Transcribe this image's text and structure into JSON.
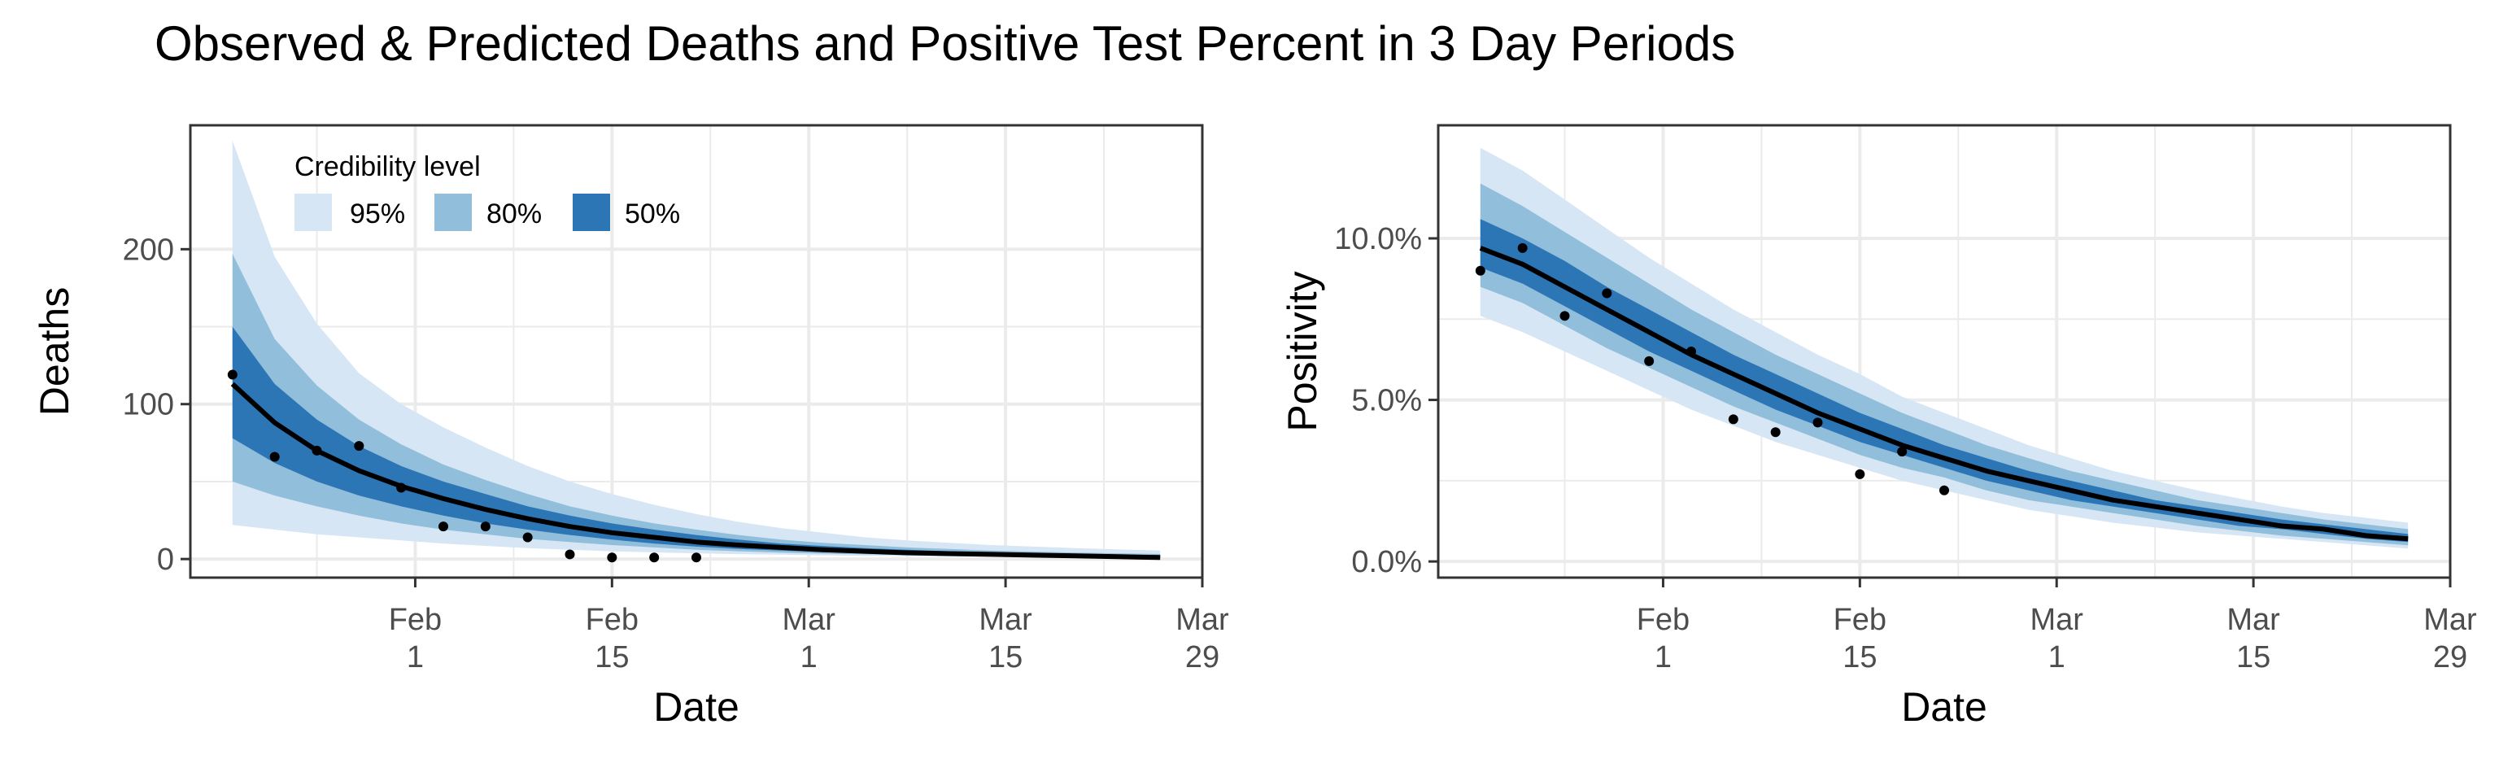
{
  "figure": {
    "title": "Observed & Predicted Deaths and Positive Test Percent in 3 Day Periods"
  },
  "legend": {
    "title": "Credibility level",
    "items": [
      {
        "label": "95%",
        "color": "#d6e6f4"
      },
      {
        "label": "80%",
        "color": "#91bedb"
      },
      {
        "label": "50%",
        "color": "#2d76b6"
      }
    ]
  },
  "colors": {
    "median_line": "#000000",
    "points": "#000000",
    "grid": "#ebebeb",
    "panel_border": "#333333"
  },
  "chart_data": [
    {
      "type": "area",
      "title": "",
      "xlabel": "Date",
      "ylabel": "Deaths",
      "x_tick_labels": [
        [
          "Feb",
          "1"
        ],
        [
          "Feb",
          "15"
        ],
        [
          "Mar",
          "1"
        ],
        [
          "Mar",
          "15"
        ],
        [
          "Mar",
          "29"
        ]
      ],
      "x_ticks": [
        "2021-02-01",
        "2021-02-15",
        "2021-03-01",
        "2021-03-15",
        "2021-03-29"
      ],
      "y_tick_labels": [
        "0",
        "100",
        "200"
      ],
      "y_ticks": [
        0,
        100,
        200
      ],
      "xlim": [
        "2021-01-16",
        "2021-03-29"
      ],
      "ylim": [
        -12,
        280
      ],
      "grid": true,
      "legend_position": "top-left",
      "x": [
        "2021-01-19",
        "2021-01-22",
        "2021-01-25",
        "2021-01-28",
        "2021-01-31",
        "2021-02-03",
        "2021-02-06",
        "2021-02-09",
        "2021-02-12",
        "2021-02-15",
        "2021-02-18",
        "2021-02-21",
        "2021-02-24",
        "2021-02-27",
        "2021-03-02",
        "2021-03-05",
        "2021-03-08",
        "2021-03-11",
        "2021-03-14",
        "2021-03-17",
        "2021-03-20",
        "2021-03-23",
        "2021-03-26"
      ],
      "median": [
        113,
        88,
        70,
        57,
        47,
        39,
        32,
        26,
        21,
        17,
        14,
        11,
        9,
        7.5,
        6,
        5,
        4,
        3.5,
        3,
        2.5,
        2,
        1.5,
        1
      ],
      "ci50": {
        "lower": [
          78,
          62,
          50,
          41,
          34,
          28,
          23,
          19,
          15.5,
          12.5,
          10,
          8,
          6.5,
          5.5,
          4.5,
          3.8,
          3,
          2.6,
          2.2,
          1.9,
          1.6,
          1.3,
          1
        ],
        "upper": [
          150,
          113,
          90,
          73,
          60,
          50,
          42,
          34,
          28,
          23,
          19,
          15.5,
          12.5,
          10,
          8.5,
          7,
          6,
          5,
          4.3,
          3.7,
          3.2,
          2.8,
          2.5
        ]
      },
      "ci80": {
        "lower": [
          50,
          41,
          34,
          28,
          23,
          19,
          16,
          13,
          11,
          9,
          7.5,
          6,
          5,
          4.2,
          3.5,
          3,
          2.5,
          2.1,
          1.8,
          1.6,
          1.4,
          1.2,
          1
        ]
      },
      "ci80_upper": [
        197,
        142,
        112,
        90,
        74,
        61,
        51,
        42,
        34,
        28,
        23,
        19,
        15.5,
        12.5,
        10.5,
        9,
        7.5,
        6.5,
        5.5,
        4.8,
        4.2,
        3.7,
        3.3
      ],
      "ci95": {
        "lower": [
          22,
          19,
          16,
          14,
          12,
          10,
          8.5,
          7,
          6,
          5,
          4.3,
          3.7,
          3.2,
          2.8,
          2.4,
          2.1,
          1.9,
          1.7,
          1.5,
          1.3,
          1.2,
          1.1,
          1
        ],
        "upper": [
          270,
          195,
          152,
          120,
          100,
          85,
          72,
          60,
          50,
          42,
          35,
          29,
          24,
          20,
          17,
          14,
          12,
          10.5,
          9,
          8,
          7,
          6.2,
          5.5
        ]
      },
      "observed": {
        "x": [
          "2021-01-19",
          "2021-01-22",
          "2021-01-25",
          "2021-01-28",
          "2021-01-31",
          "2021-02-03",
          "2021-02-06",
          "2021-02-09",
          "2021-02-12",
          "2021-02-15",
          "2021-02-18",
          "2021-02-21"
        ],
        "y": [
          119,
          66,
          70,
          73,
          46,
          21,
          21,
          14,
          3,
          1,
          1,
          1
        ]
      }
    },
    {
      "type": "area",
      "title": "",
      "xlabel": "Date",
      "ylabel": "Positivity",
      "x_tick_labels": [
        [
          "Feb",
          "1"
        ],
        [
          "Feb",
          "15"
        ],
        [
          "Mar",
          "1"
        ],
        [
          "Mar",
          "15"
        ],
        [
          "Mar",
          "29"
        ]
      ],
      "x_ticks": [
        "2021-02-01",
        "2021-02-15",
        "2021-03-01",
        "2021-03-15",
        "2021-03-29"
      ],
      "y_tick_labels": [
        "0.0%",
        "5.0%",
        "10.0%"
      ],
      "y_ticks": [
        0,
        5,
        10
      ],
      "y_unit": "percent",
      "xlim": [
        "2021-01-16",
        "2021-03-29"
      ],
      "ylim": [
        -0.5,
        13.5
      ],
      "grid": true,
      "x": [
        "2021-01-19",
        "2021-01-22",
        "2021-01-25",
        "2021-01-28",
        "2021-01-31",
        "2021-02-03",
        "2021-02-06",
        "2021-02-09",
        "2021-02-12",
        "2021-02-15",
        "2021-02-18",
        "2021-02-21",
        "2021-02-24",
        "2021-02-27",
        "2021-03-02",
        "2021-03-05",
        "2021-03-08",
        "2021-03-11",
        "2021-03-14",
        "2021-03-17",
        "2021-03-20",
        "2021-03-23",
        "2021-03-26"
      ],
      "median": [
        9.7,
        9.2,
        8.5,
        7.8,
        7.1,
        6.4,
        5.8,
        5.2,
        4.6,
        4.1,
        3.6,
        3.2,
        2.8,
        2.5,
        2.2,
        1.9,
        1.7,
        1.5,
        1.3,
        1.1,
        1.0,
        0.8,
        0.7
      ],
      "ci50": {
        "lower": [
          9.1,
          8.6,
          7.9,
          7.2,
          6.5,
          5.9,
          5.3,
          4.7,
          4.2,
          3.7,
          3.3,
          2.9,
          2.5,
          2.2,
          1.9,
          1.7,
          1.5,
          1.3,
          1.1,
          1.0,
          0.85,
          0.7,
          0.6
        ],
        "upper": [
          10.6,
          10.0,
          9.3,
          8.5,
          7.8,
          7.1,
          6.4,
          5.8,
          5.2,
          4.6,
          4.1,
          3.6,
          3.2,
          2.8,
          2.5,
          2.2,
          1.9,
          1.7,
          1.5,
          1.3,
          1.15,
          1.0,
          0.85
        ]
      },
      "ci80": {
        "lower": [
          8.5,
          8.0,
          7.3,
          6.6,
          6.0,
          5.4,
          4.8,
          4.3,
          3.8,
          3.3,
          2.9,
          2.6,
          2.2,
          1.9,
          1.7,
          1.5,
          1.3,
          1.1,
          0.95,
          0.8,
          0.7,
          0.6,
          0.5
        ]
      },
      "ci80_upper": [
        11.7,
        11.0,
        10.2,
        9.4,
        8.6,
        7.8,
        7.1,
        6.4,
        5.8,
        5.2,
        4.6,
        4.1,
        3.6,
        3.2,
        2.8,
        2.5,
        2.2,
        1.9,
        1.7,
        1.5,
        1.3,
        1.15,
        1.0
      ],
      "ci95": {
        "lower": [
          7.6,
          7.1,
          6.5,
          5.9,
          5.3,
          4.7,
          4.2,
          3.7,
          3.3,
          2.9,
          2.5,
          2.2,
          1.9,
          1.6,
          1.4,
          1.2,
          1.05,
          0.9,
          0.8,
          0.7,
          0.6,
          0.5,
          0.4
        ],
        "upper": [
          12.8,
          12.1,
          11.2,
          10.3,
          9.4,
          8.6,
          7.8,
          7.1,
          6.4,
          5.8,
          5.1,
          4.6,
          4.1,
          3.6,
          3.2,
          2.8,
          2.5,
          2.2,
          1.95,
          1.7,
          1.5,
          1.35,
          1.2
        ]
      },
      "observed": {
        "x": [
          "2021-01-19",
          "2021-01-22",
          "2021-01-25",
          "2021-01-28",
          "2021-01-31",
          "2021-02-03",
          "2021-02-06",
          "2021-02-09",
          "2021-02-12",
          "2021-02-15",
          "2021-02-18",
          "2021-02-21"
        ],
        "y": [
          9.0,
          9.7,
          7.6,
          8.3,
          6.2,
          6.5,
          4.4,
          4.0,
          4.3,
          2.7,
          3.4,
          2.2
        ]
      }
    }
  ]
}
